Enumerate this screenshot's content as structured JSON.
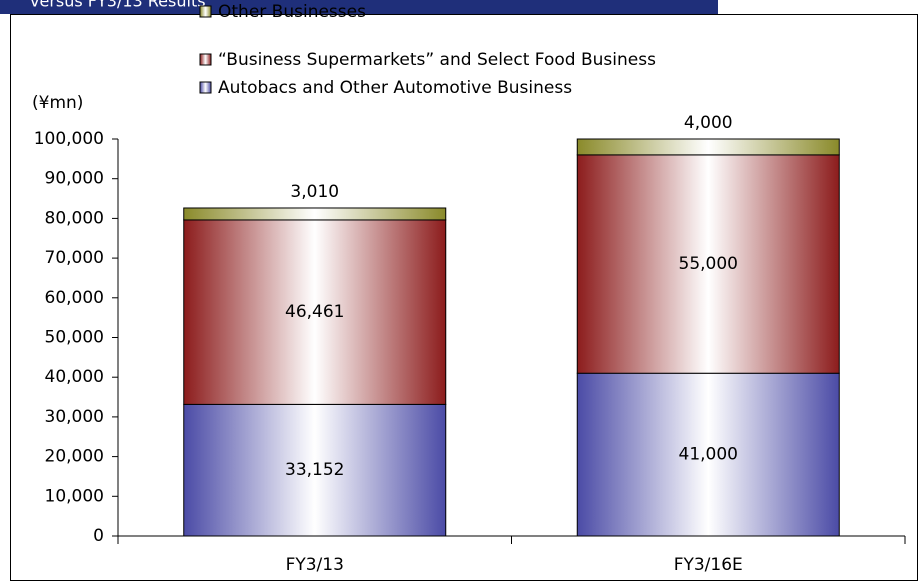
{
  "header": {
    "title": "versus FY3/13 Results"
  },
  "chart_data": {
    "type": "stacked_bar",
    "y_label": "(¥mn)",
    "categories": [
      "FY3/13",
      "FY3/16E"
    ],
    "series": [
      {
        "name": "Autobacs and Other Automotive Business",
        "color": "#4b4ba6",
        "values": [
          33152,
          41000
        ],
        "value_labels": [
          "33,152",
          "41,000"
        ]
      },
      {
        "name": "“Business Supermarkets”  and Select Food Business",
        "color": "#8c1c1c",
        "values": [
          46461,
          55000
        ],
        "value_labels": [
          "46,461",
          "55,000"
        ]
      },
      {
        "name": "Other Businesses",
        "color": "#8a8a2a",
        "values": [
          3010,
          4000
        ],
        "value_labels": [
          "3,010",
          "4,000"
        ]
      }
    ],
    "ylim": [
      0,
      100000
    ],
    "yticks": [
      0,
      {
        "value": 10000,
        "label": "10,000"
      },
      {
        "value": 20000,
        "label": "20,000"
      },
      {
        "value": 30000,
        "label": "30,000"
      },
      {
        "value": 40000,
        "label": "40,000"
      },
      {
        "value": 50000,
        "label": "50,000"
      },
      {
        "value": 60000,
        "label": "60,000"
      },
      {
        "value": 70000,
        "label": "70,000"
      },
      {
        "value": 80000,
        "label": "80,000"
      },
      {
        "value": 90000,
        "label": "90,000"
      },
      {
        "value": 100000,
        "label": "100,000"
      }
    ]
  }
}
